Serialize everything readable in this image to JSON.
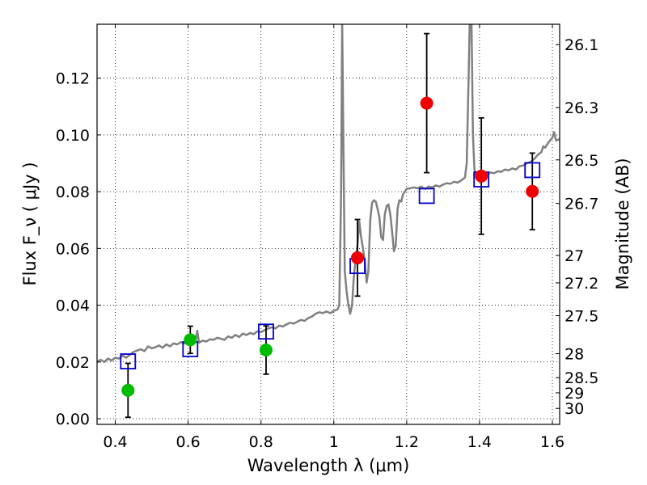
{
  "chart_data": {
    "type": "scatter",
    "xlabel": "Wavelength  λ (μm)",
    "ylabel": "Flux  F_ν  ( μJy )",
    "y2label": "Magnitude (AB)",
    "xlim": [
      0.35,
      1.62
    ],
    "ylim": [
      -0.002,
      0.139
    ],
    "grid": true,
    "x_ticks": [
      "0.4",
      "0.6",
      "0.8",
      "1",
      "1.2",
      "1.4",
      "1.6"
    ],
    "y_ticks": [
      "0.00",
      "0.02",
      "0.04",
      "0.06",
      "0.08",
      "0.10",
      "0.12"
    ],
    "y2_ticks": [
      "26.1",
      "26.3",
      "26.5",
      "26.7",
      "27",
      "27.2",
      "27.5",
      "28",
      "28.5",
      "29",
      "30"
    ],
    "colors": {
      "model": "#808080",
      "green": "#00bb00",
      "red": "#ee0000",
      "square": "#0000cc",
      "errorbar": "#000000"
    },
    "series": [
      {
        "marker": "square",
        "points": [
          [
            0.435,
            0.0202
          ],
          [
            0.606,
            0.0245
          ],
          [
            0.814,
            0.0307
          ],
          [
            1.065,
            0.0538
          ],
          [
            1.255,
            0.0785
          ],
          [
            1.405,
            0.0843
          ],
          [
            1.545,
            0.0876
          ]
        ]
      },
      {
        "marker": "circle-green",
        "points": [
          [
            0.435,
            0.01,
            0.0095
          ],
          [
            0.606,
            0.0278,
            0.0048
          ],
          [
            0.814,
            0.0242,
            0.0085
          ]
        ]
      },
      {
        "marker": "circle-red",
        "points": [
          [
            1.065,
            0.0567,
            0.0135
          ],
          [
            1.255,
            0.1112,
            0.0245
          ],
          [
            1.405,
            0.0855,
            0.0205
          ],
          [
            1.545,
            0.0801,
            0.0135
          ]
        ]
      },
      {
        "marker": "line",
        "points": [
          [
            0.35,
            0.02
          ],
          [
            0.36,
            0.0208
          ],
          [
            0.37,
            0.02
          ],
          [
            0.38,
            0.0212
          ],
          [
            0.39,
            0.0205
          ],
          [
            0.4,
            0.0215
          ],
          [
            0.41,
            0.0212
          ],
          [
            0.42,
            0.0222
          ],
          [
            0.43,
            0.0215
          ],
          [
            0.44,
            0.0225
          ],
          [
            0.45,
            0.0235
          ],
          [
            0.46,
            0.024
          ],
          [
            0.47,
            0.0245
          ],
          [
            0.48,
            0.0238
          ],
          [
            0.49,
            0.0255
          ],
          [
            0.5,
            0.0248
          ],
          [
            0.51,
            0.0252
          ],
          [
            0.52,
            0.0258
          ],
          [
            0.53,
            0.025
          ],
          [
            0.54,
            0.0262
          ],
          [
            0.55,
            0.0255
          ],
          [
            0.56,
            0.0265
          ],
          [
            0.57,
            0.0262
          ],
          [
            0.58,
            0.027
          ],
          [
            0.59,
            0.0265
          ],
          [
            0.6,
            0.0268
          ],
          [
            0.61,
            0.0262
          ],
          [
            0.62,
            0.0272
          ],
          [
            0.625,
            0.031
          ],
          [
            0.63,
            0.0268
          ],
          [
            0.64,
            0.0275
          ],
          [
            0.65,
            0.0272
          ],
          [
            0.66,
            0.028
          ],
          [
            0.67,
            0.0278
          ],
          [
            0.68,
            0.0285
          ],
          [
            0.69,
            0.0282
          ],
          [
            0.7,
            0.0278
          ],
          [
            0.71,
            0.029
          ],
          [
            0.72,
            0.0285
          ],
          [
            0.73,
            0.0295
          ],
          [
            0.74,
            0.0288
          ],
          [
            0.75,
            0.03
          ],
          [
            0.76,
            0.0295
          ],
          [
            0.77,
            0.0302
          ],
          [
            0.78,
            0.0298
          ],
          [
            0.79,
            0.0308
          ],
          [
            0.8,
            0.0305
          ],
          [
            0.81,
            0.0312
          ],
          [
            0.82,
            0.0318
          ],
          [
            0.83,
            0.0322
          ],
          [
            0.84,
            0.0318
          ],
          [
            0.85,
            0.0328
          ],
          [
            0.86,
            0.0325
          ],
          [
            0.87,
            0.0332
          ],
          [
            0.88,
            0.0338
          ],
          [
            0.89,
            0.0335
          ],
          [
            0.9,
            0.0342
          ],
          [
            0.91,
            0.0348
          ],
          [
            0.92,
            0.0345
          ],
          [
            0.93,
            0.0355
          ],
          [
            0.94,
            0.036
          ],
          [
            0.95,
            0.037
          ],
          [
            0.96,
            0.0375
          ],
          [
            0.97,
            0.0372
          ],
          [
            0.98,
            0.0378
          ],
          [
            0.99,
            0.0372
          ],
          [
            1.0,
            0.038
          ],
          [
            1.01,
            0.0385
          ],
          [
            1.015,
            0.04
          ],
          [
            1.02,
            0.08
          ],
          [
            1.023,
            0.14
          ],
          [
            1.026,
            0.1
          ],
          [
            1.03,
            0.052
          ],
          [
            1.035,
            0.045
          ],
          [
            1.04,
            0.04
          ],
          [
            1.045,
            0.037
          ],
          [
            1.05,
            0.04
          ],
          [
            1.055,
            0.05
          ],
          [
            1.06,
            0.056
          ],
          [
            1.065,
            0.061
          ],
          [
            1.07,
            0.0695
          ],
          [
            1.075,
            0.064
          ],
          [
            1.08,
            0.06
          ],
          [
            1.085,
            0.056
          ],
          [
            1.09,
            0.048
          ],
          [
            1.095,
            0.052
          ],
          [
            1.1,
            0.07
          ],
          [
            1.105,
            0.076
          ],
          [
            1.11,
            0.077
          ],
          [
            1.115,
            0.0765
          ],
          [
            1.12,
            0.074
          ],
          [
            1.125,
            0.071
          ],
          [
            1.13,
            0.064
          ],
          [
            1.135,
            0.063
          ],
          [
            1.14,
            0.072
          ],
          [
            1.145,
            0.075
          ],
          [
            1.15,
            0.0755
          ],
          [
            1.155,
            0.072
          ],
          [
            1.16,
            0.066
          ],
          [
            1.165,
            0.059
          ],
          [
            1.17,
            0.061
          ],
          [
            1.175,
            0.074
          ],
          [
            1.18,
            0.077
          ],
          [
            1.185,
            0.0765
          ],
          [
            1.19,
            0.079
          ],
          [
            1.2,
            0.081
          ],
          [
            1.21,
            0.0812
          ],
          [
            1.22,
            0.0815
          ],
          [
            1.23,
            0.0812
          ],
          [
            1.24,
            0.0818
          ],
          [
            1.25,
            0.081
          ],
          [
            1.26,
            0.0818
          ],
          [
            1.27,
            0.0815
          ],
          [
            1.28,
            0.0822
          ],
          [
            1.29,
            0.0818
          ],
          [
            1.3,
            0.0825
          ],
          [
            1.31,
            0.083
          ],
          [
            1.32,
            0.0828
          ],
          [
            1.33,
            0.0835
          ],
          [
            1.34,
            0.0832
          ],
          [
            1.35,
            0.084
          ],
          [
            1.36,
            0.085
          ],
          [
            1.365,
            0.09
          ],
          [
            1.37,
            0.12
          ],
          [
            1.373,
            0.14
          ],
          [
            1.378,
            0.14
          ],
          [
            1.382,
            0.1
          ],
          [
            1.386,
            0.088
          ],
          [
            1.39,
            0.086
          ],
          [
            1.4,
            0.0858
          ],
          [
            1.41,
            0.0862
          ],
          [
            1.42,
            0.086
          ],
          [
            1.43,
            0.0868
          ],
          [
            1.44,
            0.0865
          ],
          [
            1.45,
            0.0872
          ],
          [
            1.46,
            0.087
          ],
          [
            1.47,
            0.0878
          ],
          [
            1.48,
            0.0875
          ],
          [
            1.49,
            0.0882
          ],
          [
            1.5,
            0.0878
          ],
          [
            1.51,
            0.089
          ],
          [
            1.52,
            0.0892
          ],
          [
            1.53,
            0.09
          ],
          [
            1.54,
            0.0905
          ],
          [
            1.55,
            0.0915
          ],
          [
            1.56,
            0.093
          ],
          [
            1.57,
            0.094
          ],
          [
            1.575,
            0.096
          ],
          [
            1.58,
            0.0955
          ],
          [
            1.59,
            0.0975
          ],
          [
            1.6,
            0.099
          ],
          [
            1.605,
            0.101
          ],
          [
            1.61,
            0.098
          ],
          [
            1.62,
            0.0985
          ]
        ]
      }
    ]
  }
}
